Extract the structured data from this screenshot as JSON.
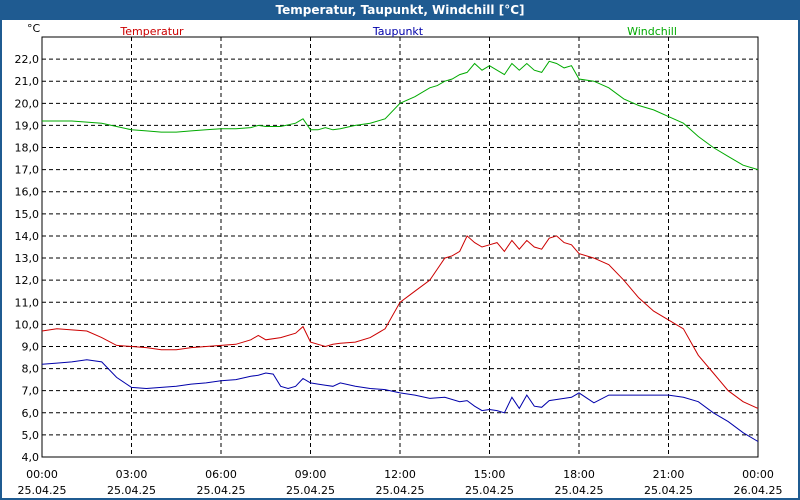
{
  "window": {
    "title": "Temperatur, Taupunkt, Windchill [°C]"
  },
  "chart_data": {
    "type": "line",
    "title": "Temperatur, Taupunkt, Windchill [°C]",
    "ylabel": "°C",
    "xlabel": "",
    "ylim": [
      4.0,
      23.0
    ],
    "yticks": [
      4.0,
      5.0,
      6.0,
      7.0,
      8.0,
      9.0,
      10.0,
      11.0,
      12.0,
      13.0,
      14.0,
      15.0,
      16.0,
      17.0,
      18.0,
      19.0,
      20.0,
      21.0,
      22.0
    ],
    "ytick_labels": [
      "4,0",
      "5,0",
      "6,0",
      "7,0",
      "8,0",
      "9,0",
      "10,0",
      "11,0",
      "12,0",
      "13,0",
      "14,0",
      "15,0",
      "16,0",
      "17,0",
      "18,0",
      "19,0",
      "20,0",
      "21,0",
      "22,0"
    ],
    "xlim": [
      0,
      24
    ],
    "xticks": [
      0,
      3,
      6,
      9,
      12,
      15,
      18,
      21,
      24
    ],
    "xtick_labels": [
      [
        "00:00",
        "25.04.25"
      ],
      [
        "03:00",
        "25.04.25"
      ],
      [
        "06:00",
        "25.04.25"
      ],
      [
        "09:00",
        "25.04.25"
      ],
      [
        "12:00",
        "25.04.25"
      ],
      [
        "15:00",
        "25.04.25"
      ],
      [
        "18:00",
        "25.04.25"
      ],
      [
        "21:00",
        "25.04.25"
      ],
      [
        "00:00",
        "26.04.25"
      ]
    ],
    "grid": true,
    "legend_position": "top",
    "series": [
      {
        "name": "Temperatur",
        "color": "#cc0000",
        "x": [
          0,
          0.5,
          1,
          1.5,
          2,
          2.5,
          3,
          3.5,
          4,
          4.5,
          5,
          5.5,
          6,
          6.5,
          7,
          7.25,
          7.5,
          8,
          8.5,
          8.75,
          9,
          9.25,
          9.5,
          9.75,
          10,
          10.5,
          11,
          11.5,
          12,
          12.5,
          13,
          13.25,
          13.5,
          13.75,
          14,
          14.25,
          14.5,
          14.75,
          15,
          15.25,
          15.5,
          15.75,
          16,
          16.25,
          16.5,
          16.75,
          17,
          17.25,
          17.5,
          17.75,
          18,
          18.5,
          19,
          19.5,
          20,
          20.5,
          21,
          21.5,
          22,
          22.5,
          23,
          23.5,
          24
        ],
        "values": [
          9.7,
          9.8,
          9.75,
          9.7,
          9.4,
          9.05,
          9.0,
          8.95,
          8.85,
          8.85,
          8.95,
          9.0,
          9.05,
          9.1,
          9.3,
          9.5,
          9.3,
          9.4,
          9.6,
          9.9,
          9.2,
          9.1,
          9.0,
          9.1,
          9.15,
          9.2,
          9.4,
          9.8,
          11.0,
          11.5,
          12.0,
          12.5,
          13.0,
          13.1,
          13.3,
          14.0,
          13.7,
          13.5,
          13.6,
          13.7,
          13.3,
          13.8,
          13.4,
          13.8,
          13.5,
          13.4,
          13.9,
          14.0,
          13.7,
          13.6,
          13.2,
          13.0,
          12.7,
          12.0,
          11.2,
          10.6,
          10.2,
          9.8,
          8.6,
          7.8,
          7.0,
          6.5,
          6.2
        ]
      },
      {
        "name": "Taupunkt",
        "color": "#0000aa",
        "x": [
          0,
          0.5,
          1,
          1.5,
          2,
          2.5,
          3,
          3.5,
          4,
          4.5,
          5,
          5.5,
          6,
          6.5,
          7,
          7.25,
          7.5,
          7.75,
          8,
          8.25,
          8.5,
          8.75,
          9,
          9.25,
          9.5,
          9.75,
          10,
          10.5,
          11,
          11.5,
          12,
          12.5,
          13,
          13.5,
          14,
          14.25,
          14.5,
          14.75,
          15,
          15.25,
          15.5,
          15.75,
          16,
          16.25,
          16.5,
          16.75,
          17,
          17.25,
          17.5,
          17.75,
          18,
          18.5,
          19,
          19.5,
          20,
          20.5,
          21,
          21.5,
          22,
          22.5,
          23,
          23.5,
          24
        ],
        "values": [
          8.2,
          8.25,
          8.3,
          8.4,
          8.3,
          7.6,
          7.15,
          7.1,
          7.15,
          7.2,
          7.3,
          7.35,
          7.45,
          7.5,
          7.65,
          7.7,
          7.8,
          7.75,
          7.2,
          7.1,
          7.2,
          7.55,
          7.35,
          7.3,
          7.25,
          7.2,
          7.35,
          7.2,
          7.1,
          7.05,
          6.9,
          6.8,
          6.65,
          6.7,
          6.5,
          6.55,
          6.3,
          6.1,
          6.15,
          6.1,
          6.0,
          6.7,
          6.2,
          6.8,
          6.3,
          6.25,
          6.55,
          6.6,
          6.65,
          6.7,
          6.9,
          6.45,
          6.8,
          6.8,
          6.8,
          6.8,
          6.8,
          6.7,
          6.5,
          6.0,
          5.6,
          5.1,
          4.7
        ]
      },
      {
        "name": "Windchill",
        "color": "#00aa00",
        "x": [
          0,
          0.5,
          1,
          1.5,
          2,
          2.5,
          3,
          3.5,
          4,
          4.5,
          5,
          5.5,
          6,
          6.5,
          7,
          7.25,
          7.5,
          8,
          8.5,
          8.75,
          9,
          9.25,
          9.5,
          9.75,
          10,
          10.5,
          11,
          11.5,
          12,
          12.5,
          13,
          13.25,
          13.5,
          13.75,
          14,
          14.25,
          14.5,
          14.75,
          15,
          15.25,
          15.5,
          15.75,
          16,
          16.25,
          16.5,
          16.75,
          17,
          17.25,
          17.5,
          17.75,
          18,
          18.5,
          19,
          19.5,
          20,
          20.5,
          21,
          21.5,
          22,
          22.5,
          23,
          23.5,
          24
        ],
        "values": [
          19.2,
          19.2,
          19.2,
          19.15,
          19.1,
          18.95,
          18.8,
          18.75,
          18.7,
          18.7,
          18.75,
          18.8,
          18.85,
          18.85,
          18.9,
          19.0,
          18.95,
          18.95,
          19.1,
          19.3,
          18.8,
          18.8,
          18.9,
          18.8,
          18.85,
          19.0,
          19.1,
          19.3,
          20.0,
          20.3,
          20.7,
          20.8,
          21.0,
          21.1,
          21.3,
          21.4,
          21.8,
          21.5,
          21.7,
          21.5,
          21.3,
          21.8,
          21.5,
          21.8,
          21.5,
          21.4,
          21.9,
          21.8,
          21.6,
          21.7,
          21.1,
          21.0,
          20.7,
          20.2,
          19.9,
          19.7,
          19.4,
          19.1,
          18.5,
          18.0,
          17.6,
          17.2,
          17.0
        ]
      }
    ]
  }
}
